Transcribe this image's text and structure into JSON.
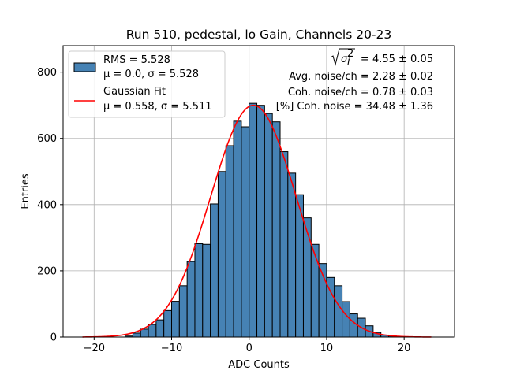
{
  "chart_data": {
    "type": "bar",
    "title": "Run 510, pedestal, lo Gain, Channels 20-23",
    "xlabel": "ADC Counts",
    "ylabel": "Entries",
    "xlim": [
      -24,
      26.5
    ],
    "ylim": [
      0,
      880
    ],
    "grid": true,
    "x_ticks": [
      -20,
      -10,
      0,
      10,
      20
    ],
    "x_tick_labels": [
      "−20",
      "−10",
      "0",
      "10",
      "20"
    ],
    "y_ticks": [
      0,
      200,
      400,
      600,
      800
    ],
    "y_tick_labels": [
      "0",
      "200",
      "400",
      "600",
      "800"
    ],
    "histogram": {
      "name": "RMS = 5.528",
      "name_line2": "μ = 0.0, σ = 5.528",
      "color": "#4682b4",
      "edge_color": "#000000",
      "bin_width": 1,
      "bin_edges_start": -16,
      "counts": [
        3,
        12,
        24,
        38,
        52,
        80,
        108,
        155,
        228,
        282,
        280,
        402,
        500,
        578,
        652,
        635,
        706,
        700,
        675,
        650,
        560,
        495,
        430,
        360,
        280,
        222,
        180,
        155,
        107,
        70,
        57,
        34,
        14,
        6,
        3
      ]
    },
    "fit": {
      "name": "Gaussian Fit",
      "name_line2": "μ = 0.558, σ = 5.511",
      "color": "#ff0000",
      "mu": 0.558,
      "sigma": 5.511,
      "amplitude": 700,
      "x_range": [
        -21.5,
        23.5
      ]
    },
    "legend_position": "upper-left",
    "annotations": [
      {
        "prefix": "= 4.55 ± 0.05",
        "sqrt": true
      },
      {
        "text": "Avg. noise/ch = 2.28 ± 0.02"
      },
      {
        "text": "Coh. noise/ch = 0.78 ± 0.03"
      },
      {
        "text": "[%] Coh. noise = 34.48 ± 1.36"
      }
    ]
  }
}
